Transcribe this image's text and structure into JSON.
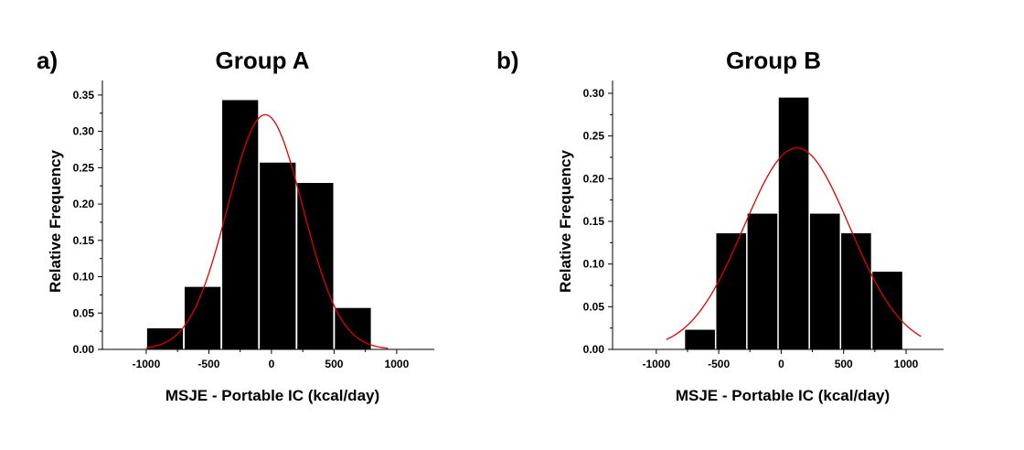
{
  "chart_data": [
    {
      "panel_label": "a)",
      "type": "bar",
      "title": "Group A",
      "xlabel": "MSJE - Portable IC (kcal/day)",
      "ylabel": "Relative Frequency",
      "xlim": [
        -1350,
        1300
      ],
      "ylim": [
        0,
        0.37
      ],
      "x_ticks": [
        -1000,
        -500,
        0,
        500,
        1000
      ],
      "x_tick_labels": [
        "-1000",
        "-500",
        "0",
        "500",
        "1000"
      ],
      "y_ticks": [
        0,
        0.05,
        0.1,
        0.15,
        0.2,
        0.25,
        0.3,
        0.35
      ],
      "y_tick_labels": [
        "0.00",
        "0.05",
        "0.10",
        "0.15",
        "0.20",
        "0.25",
        "0.30",
        "0.35"
      ],
      "bin_width": 300,
      "bins": [
        {
          "center": -850,
          "value": 0.029
        },
        {
          "center": -550,
          "value": 0.086
        },
        {
          "center": -250,
          "value": 0.343
        },
        {
          "center": 50,
          "value": 0.257
        },
        {
          "center": 350,
          "value": 0.229
        },
        {
          "center": 650,
          "value": 0.057
        }
      ],
      "fit_curve": {
        "type": "normal",
        "peak": 0.323,
        "mean": -50,
        "sd": 300,
        "x_range": [
          -1000,
          930
        ],
        "color": "#e00000"
      },
      "bar_color": "#000000",
      "grid": false
    },
    {
      "panel_label": "b)",
      "type": "bar",
      "title": "Group B",
      "xlabel": "MSJE - Portable IC (kcal/day)",
      "ylabel": "Relative Frequency",
      "xlim": [
        -1350,
        1300
      ],
      "ylim": [
        0,
        0.315
      ],
      "x_ticks": [
        -1000,
        -500,
        0,
        500,
        1000
      ],
      "x_tick_labels": [
        "-1000",
        "-500",
        "0",
        "500",
        "1000"
      ],
      "y_ticks": [
        0,
        0.05,
        0.1,
        0.15,
        0.2,
        0.25,
        0.3
      ],
      "y_tick_labels": [
        "0.00",
        "0.05",
        "0.10",
        "0.15",
        "0.20",
        "0.25",
        "0.30"
      ],
      "bin_width": 250,
      "bins": [
        {
          "center": -650,
          "value": 0.023
        },
        {
          "center": -400,
          "value": 0.136
        },
        {
          "center": -150,
          "value": 0.159
        },
        {
          "center": 100,
          "value": 0.295
        },
        {
          "center": 350,
          "value": 0.159
        },
        {
          "center": 600,
          "value": 0.136
        },
        {
          "center": 850,
          "value": 0.091
        }
      ],
      "fit_curve": {
        "type": "normal",
        "peak": 0.236,
        "mean": 125,
        "sd": 425,
        "x_range": [
          -920,
          1120
        ],
        "color": "#e00000"
      },
      "bar_color": "#000000",
      "grid": false
    }
  ]
}
